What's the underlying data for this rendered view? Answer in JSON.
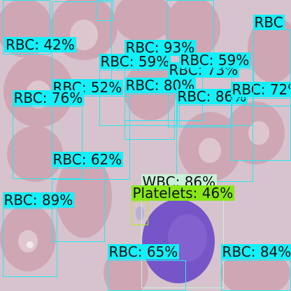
{
  "image": {
    "subject": "blood-smear-microscopy",
    "colors": {
      "background": "#d6c2cc",
      "rbc": "#d0a7b3",
      "wbc": "#7453c9",
      "rbc_box": "#14f0f8",
      "wbc_box": "#c8f0d8",
      "platelet_box": "#88e818"
    }
  },
  "detections": [
    {
      "id": "d1",
      "label": "RBC: 42%"
    },
    {
      "id": "d2",
      "label": "RBC: 93%"
    },
    {
      "id": "d3",
      "label": "RBC: 59%"
    },
    {
      "id": "d4",
      "label": "RBC: 73%"
    },
    {
      "id": "d5",
      "label": "RBC: 59%"
    },
    {
      "id": "d6",
      "label": "RBC: 52%"
    },
    {
      "id": "d7",
      "label": "RBC: 80%"
    },
    {
      "id": "d8",
      "label": "RBC: 76%"
    },
    {
      "id": "d9",
      "label": "RBC: 86%"
    },
    {
      "id": "d10",
      "label": "RBC: 72%"
    },
    {
      "id": "d11",
      "label": "RBC: 62%"
    },
    {
      "id": "d12",
      "label": "WBC: 86%"
    },
    {
      "id": "d13",
      "label": "Platelets: 46%"
    },
    {
      "id": "d14",
      "label": "RBC: 89%"
    },
    {
      "id": "d15",
      "label": "RBC: 65%"
    },
    {
      "id": "d16",
      "label": "RBC: 84%"
    },
    {
      "id": "d17",
      "label": "RBC"
    }
  ]
}
